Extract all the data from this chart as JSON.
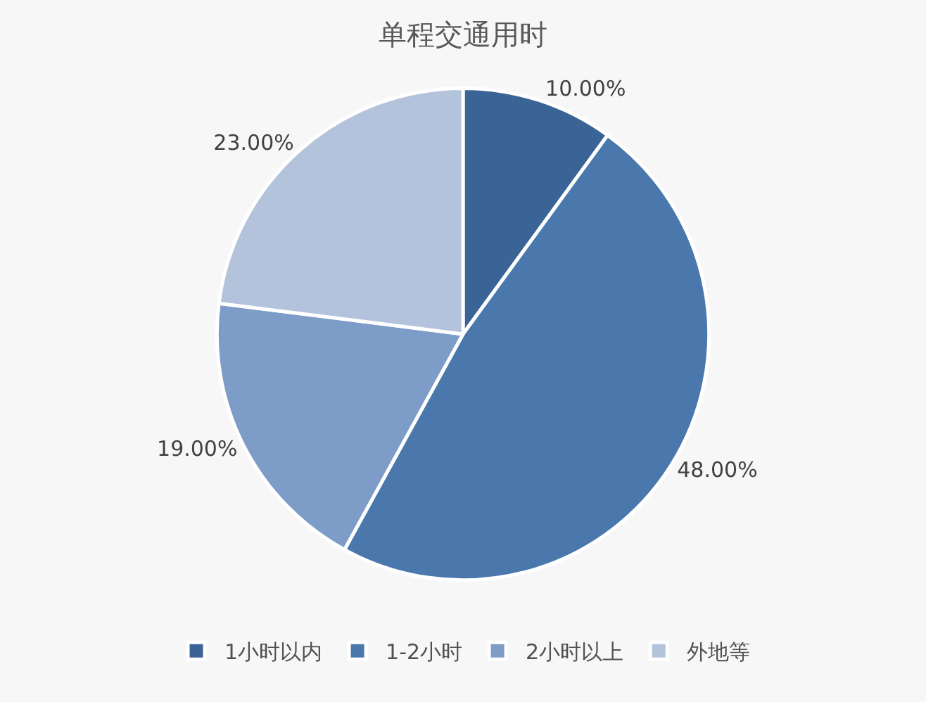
{
  "chart_data": {
    "type": "pie",
    "title": "单程交通用时",
    "categories": [
      "1小时以内",
      "1-2小时",
      "2小时以上",
      "外地等"
    ],
    "values": [
      10,
      48,
      19,
      23
    ],
    "value_labels": [
      "10.00%",
      "48.00%",
      "19.00%",
      "23.00%"
    ],
    "colors": [
      "#3b6496",
      "#4a78ad",
      "#7d9cc8",
      "#b3c3dc"
    ],
    "legend": "bottom"
  }
}
